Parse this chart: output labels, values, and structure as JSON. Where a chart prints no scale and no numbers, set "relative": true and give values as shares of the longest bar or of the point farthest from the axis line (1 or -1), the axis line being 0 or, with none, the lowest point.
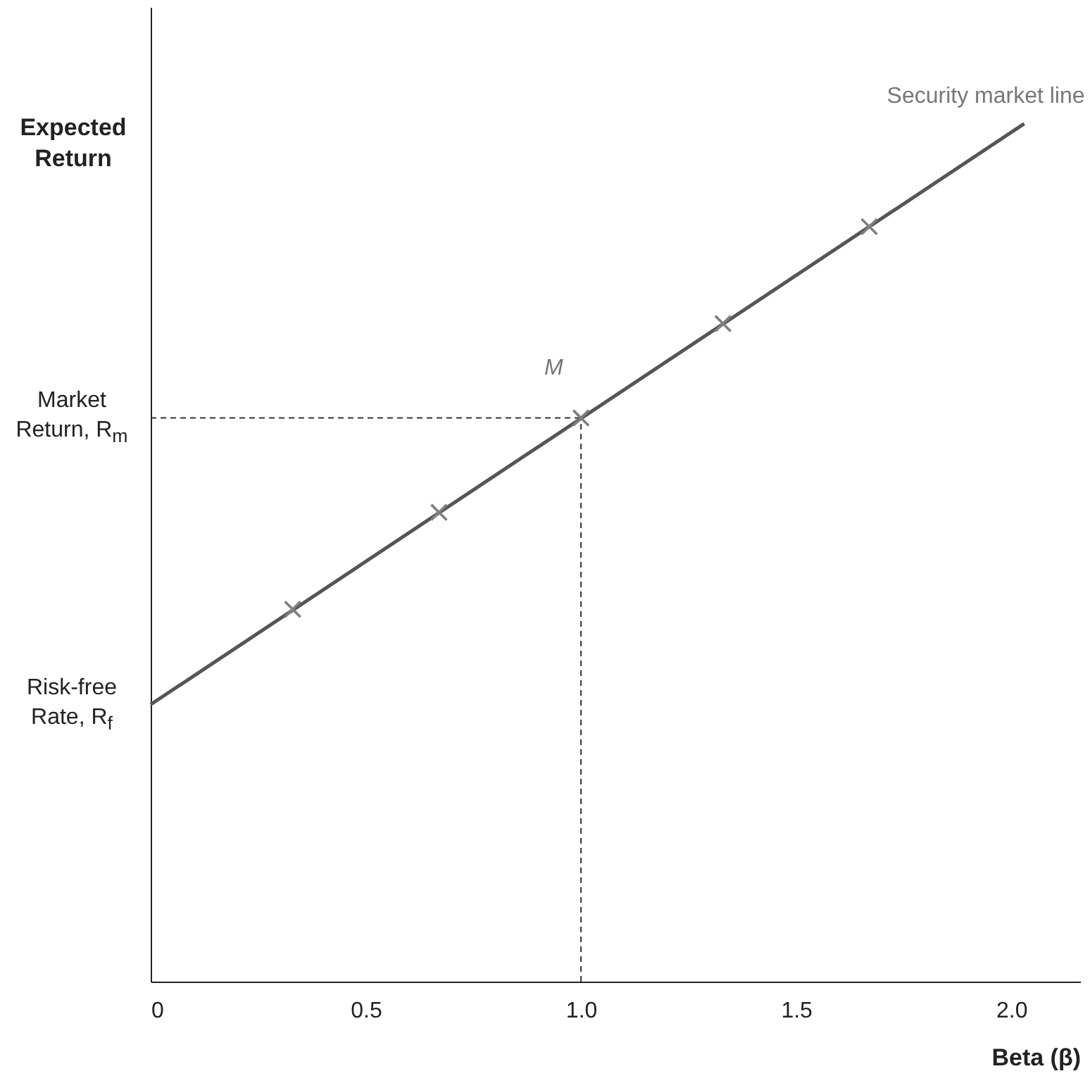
{
  "chart_data": {
    "type": "line",
    "relative": true,
    "xlabel": "Beta (β)",
    "ylabel": "Expected Return",
    "xlim": [
      0,
      2.16
    ],
    "xticks": [
      0,
      0.5,
      {
        "value": 1,
        "label": "1.0"
      },
      1.5,
      {
        "value": 2,
        "label": "2.0"
      }
    ],
    "tick_labels": "x",
    "series": [
      {
        "name": "Security market line",
        "marker": "none",
        "color": "#555555",
        "x": [
          0,
          2.03
        ],
        "values": [
          0.323,
          1.0
        ]
      },
      {
        "type": "scatter",
        "marker": "cross",
        "color": "#808080",
        "x": [
          0.33,
          0.67,
          1.0,
          1.33,
          1.67
        ],
        "values": [
          0.434,
          0.547,
          0.657,
          0.767,
          0.88
        ]
      }
    ],
    "ref_lines": [
      {
        "axis": "y",
        "value": 0.657,
        "label": "Market Return, R$_{m}$",
        "line_style": "dashed"
      },
      {
        "axis": "x",
        "value": 1.0,
        "line_style": "dashed"
      }
    ],
    "annotations": [
      {
        "text": "Risk-free Rate, R$_{f}$",
        "x": 0,
        "y": 0.323
      },
      {
        "text": "M",
        "x": 1.0,
        "y": 0.657
      }
    ]
  }
}
